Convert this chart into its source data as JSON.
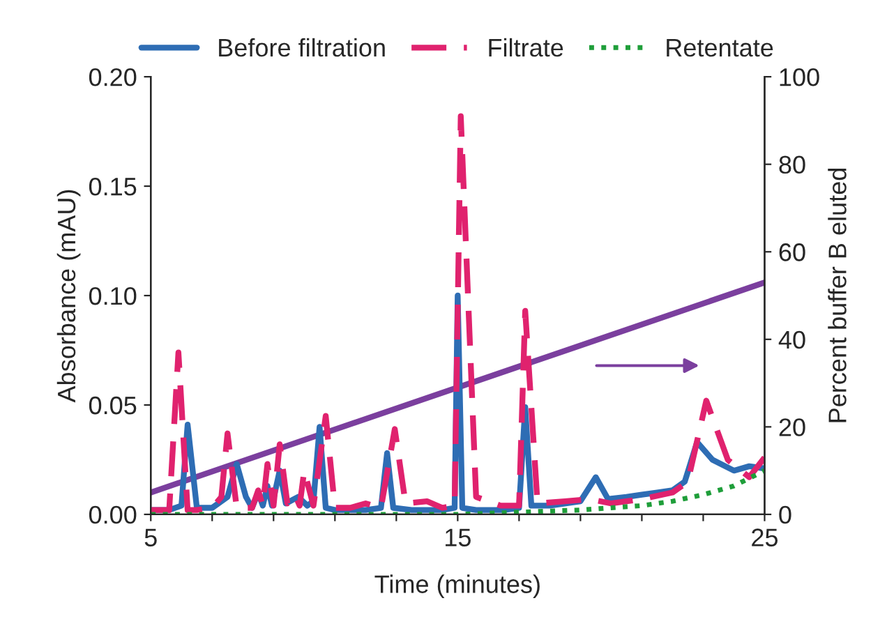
{
  "chart_data": {
    "type": "line",
    "xlabel": "Time (minutes)",
    "ylabel": "Absorbance (mAU)",
    "y2label": "Percent buffer B eluted",
    "xlim": [
      5,
      25
    ],
    "xticks": [
      5,
      {
        "value": 7,
        "label": null
      },
      {
        "value": 9,
        "label": null
      },
      {
        "value": 11,
        "label": null
      },
      {
        "value": 13,
        "label": null
      },
      15,
      {
        "value": 17,
        "label": null
      },
      {
        "value": 19,
        "label": null
      },
      {
        "value": 21,
        "label": null
      },
      {
        "value": 23,
        "label": null
      },
      25
    ],
    "ylim": [
      0,
      0.2
    ],
    "yticks": [
      {
        "value": 0,
        "label": "0.00"
      },
      {
        "value": 0.05,
        "label": "0.05"
      },
      {
        "value": 0.1,
        "label": "0.10"
      },
      {
        "value": 0.15,
        "label": "0.15"
      },
      {
        "value": 0.2,
        "label": "0.20"
      }
    ],
    "y2lim": [
      0,
      100
    ],
    "y2ticks": [
      0,
      20,
      40,
      60,
      80,
      100
    ],
    "grid": false,
    "legend": "top",
    "marker": "none",
    "series": [
      {
        "name": "Before filtration",
        "color": "#2e6db4",
        "line_style": "solid",
        "x": [
          5,
          5.6,
          6.0,
          6.2,
          6.5,
          7.0,
          7.5,
          7.8,
          8.1,
          8.3,
          8.5,
          8.65,
          8.8,
          8.95,
          9.2,
          9.4,
          9.8,
          10.1,
          10.3,
          10.5,
          10.7,
          11.0,
          12.0,
          12.5,
          12.7,
          12.9,
          13.5,
          14.5,
          14.9,
          15.0,
          15.15,
          15.6,
          16.5,
          17.0,
          17.2,
          17.4,
          18.0,
          19.0,
          19.5,
          19.9,
          20.5,
          21.0,
          21.5,
          22.0,
          22.4,
          22.8,
          23.3,
          24.0,
          24.5,
          25
        ],
        "values": [
          0.002,
          0.002,
          0.004,
          0.041,
          0.003,
          0.003,
          0.008,
          0.023,
          0.008,
          0.003,
          0.01,
          0.004,
          0.013,
          0.004,
          0.02,
          0.005,
          0.008,
          0.004,
          0.006,
          0.04,
          0.003,
          0.002,
          0.002,
          0.003,
          0.028,
          0.003,
          0.002,
          0.002,
          0.003,
          0.1,
          0.003,
          0.002,
          0.002,
          0.003,
          0.049,
          0.004,
          0.004,
          0.006,
          0.017,
          0.007,
          0.008,
          0.009,
          0.01,
          0.011,
          0.015,
          0.033,
          0.025,
          0.02,
          0.022,
          0.021
        ]
      },
      {
        "name": "Filtrate",
        "color": "#e0226e",
        "line_style": "dashed",
        "x": [
          5,
          5.6,
          5.9,
          6.2,
          6.5,
          7.0,
          7.3,
          7.5,
          7.8,
          8.3,
          8.5,
          8.65,
          8.8,
          9.0,
          9.2,
          9.45,
          9.7,
          9.85,
          10.0,
          10.3,
          10.7,
          11.0,
          11.5,
          12.0,
          12.5,
          12.95,
          13.3,
          14.0,
          14.5,
          14.9,
          15.1,
          15.6,
          16.4,
          17.0,
          17.2,
          17.6,
          18.5,
          19.3,
          20.0,
          21.0,
          22.0,
          22.5,
          23.1,
          23.8,
          24.5,
          25
        ],
        "values": [
          0.002,
          0.002,
          0.074,
          0.002,
          0.002,
          0.003,
          0.008,
          0.037,
          0.003,
          0.003,
          0.011,
          0.004,
          0.023,
          0.004,
          0.032,
          0.005,
          0.009,
          0.004,
          0.02,
          0.004,
          0.045,
          0.003,
          0.003,
          0.005,
          0.003,
          0.039,
          0.005,
          0.006,
          0.003,
          0.004,
          0.182,
          0.008,
          0.004,
          0.004,
          0.093,
          0.005,
          0.006,
          0.007,
          0.005,
          0.007,
          0.01,
          0.015,
          0.052,
          0.025,
          0.017,
          0.026
        ]
      },
      {
        "name": "Retentate",
        "color": "#1f9e3a",
        "line_style": "dotted",
        "x": [
          5,
          10,
          15,
          17,
          19,
          20,
          21,
          22,
          23,
          24,
          25
        ],
        "values": [
          0.0,
          0.0,
          0.0,
          0.001,
          0.002,
          0.003,
          0.004,
          0.006,
          0.009,
          0.013,
          0.02
        ]
      },
      {
        "color": "#7b3f9e",
        "line_style": "solid",
        "axis": "y2",
        "x": [
          5,
          25
        ],
        "values": [
          5,
          53
        ]
      }
    ]
  }
}
